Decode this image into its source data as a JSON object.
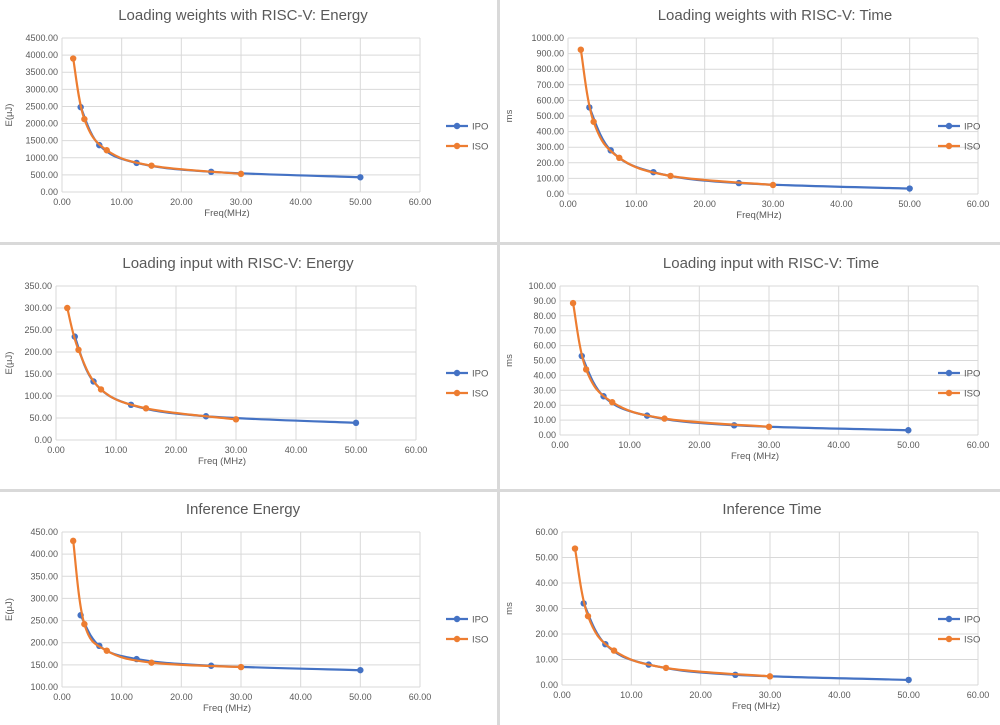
{
  "colors": {
    "IPO": "#4472C4",
    "ISO": "#ED7D31",
    "grid": "#d9d9d9"
  },
  "chart_data": [
    {
      "type": "line",
      "title": "Loading weights with RISC-V: Energy",
      "xlabel": "Freq(MHz)",
      "ylabel": "E(μJ)",
      "xlim": [
        0,
        60
      ],
      "ylim": [
        0,
        4500
      ],
      "xstep": 10,
      "ystep": 500,
      "x_ticks": [
        "0.00",
        "10.00",
        "20.00",
        "30.00",
        "40.00",
        "50.00",
        "60.00"
      ],
      "y_ticks": [
        "0.00",
        "500.00",
        "1000.00",
        "1500.00",
        "2000.00",
        "2500.00",
        "3000.00",
        "3500.00",
        "4000.00",
        "4500.00"
      ],
      "legend": [
        "IPO",
        "ISO"
      ],
      "series": [
        {
          "name": "IPO",
          "x": [
            3.125,
            6.25,
            12.5,
            25,
            50
          ],
          "y": [
            2480,
            1370,
            850,
            590,
            430
          ]
        },
        {
          "name": "ISO",
          "x": [
            1.875,
            3.75,
            7.5,
            15,
            30
          ],
          "y": [
            3900,
            2130,
            1220,
            770,
            530
          ]
        }
      ]
    },
    {
      "type": "line",
      "title": "Loading weights with RISC-V: Time",
      "xlabel": "Freq(MHz)",
      "ylabel": "ms",
      "xlim": [
        0,
        60
      ],
      "ylim": [
        0,
        1000
      ],
      "xstep": 10,
      "ystep": 100,
      "x_ticks": [
        "0.00",
        "10.00",
        "20.00",
        "30.00",
        "40.00",
        "50.00",
        "60.00"
      ],
      "y_ticks": [
        "0.00",
        "100.00",
        "200.00",
        "300.00",
        "400.00",
        "500.00",
        "600.00",
        "700.00",
        "800.00",
        "900.00",
        "1000.00"
      ],
      "legend": [
        "IPO",
        "ISO"
      ],
      "series": [
        {
          "name": "IPO",
          "x": [
            3.125,
            6.25,
            12.5,
            25,
            50
          ],
          "y": [
            555,
            280,
            140,
            70,
            35
          ]
        },
        {
          "name": "ISO",
          "x": [
            1.875,
            3.75,
            7.5,
            15,
            30
          ],
          "y": [
            925,
            463,
            232,
            116,
            58
          ]
        }
      ]
    },
    {
      "type": "line",
      "title": "Loading input with RISC-V: Energy",
      "xlabel": "Freq (MHz)",
      "ylabel": "E(μJ)",
      "xlim": [
        0,
        60
      ],
      "ylim": [
        0,
        350
      ],
      "xstep": 10,
      "ystep": 50,
      "x_ticks": [
        "0.00",
        "10.00",
        "20.00",
        "30.00",
        "40.00",
        "50.00",
        "60.00"
      ],
      "y_ticks": [
        "0.00",
        "50.00",
        "100.00",
        "150.00",
        "200.00",
        "250.00",
        "300.00",
        "350.00"
      ],
      "legend": [
        "IPO",
        "ISO"
      ],
      "series": [
        {
          "name": "IPO",
          "x": [
            3.125,
            6.25,
            12.5,
            25,
            50
          ],
          "y": [
            235,
            133,
            80,
            54,
            39
          ]
        },
        {
          "name": "ISO",
          "x": [
            1.875,
            3.75,
            7.5,
            15,
            30
          ],
          "y": [
            300,
            205,
            115,
            72,
            47
          ]
        }
      ]
    },
    {
      "type": "line",
      "title": "Loading input with RISC-V: Time",
      "xlabel": "Freq (MHz)",
      "ylabel": "ms",
      "xlim": [
        0,
        60
      ],
      "ylim": [
        0,
        100
      ],
      "xstep": 10,
      "ystep": 10,
      "x_ticks": [
        "0.00",
        "10.00",
        "20.00",
        "30.00",
        "40.00",
        "50.00",
        "60.00"
      ],
      "y_ticks": [
        "0.00",
        "10.00",
        "20.00",
        "30.00",
        "40.00",
        "50.00",
        "60.00",
        "70.00",
        "80.00",
        "90.00",
        "100.00"
      ],
      "legend": [
        "IPO",
        "ISO"
      ],
      "series": [
        {
          "name": "IPO",
          "x": [
            3.125,
            6.25,
            12.5,
            25,
            50
          ],
          "y": [
            53,
            26,
            13,
            6.5,
            3.2
          ]
        },
        {
          "name": "ISO",
          "x": [
            1.875,
            3.75,
            7.5,
            15,
            30
          ],
          "y": [
            88.5,
            44,
            22,
            11,
            5.5
          ]
        }
      ]
    },
    {
      "type": "line",
      "title": "Inference Energy",
      "xlabel": "Freq (MHz)",
      "ylabel": "E(μJ)",
      "xlim": [
        0,
        60
      ],
      "ylim": [
        100,
        450
      ],
      "xstep": 10,
      "ystep": 50,
      "x_ticks": [
        "0.00",
        "10.00",
        "20.00",
        "30.00",
        "40.00",
        "50.00",
        "60.00"
      ],
      "y_ticks": [
        "100.00",
        "150.00",
        "200.00",
        "250.00",
        "300.00",
        "350.00",
        "400.00",
        "450.00"
      ],
      "legend": [
        "IPO",
        "ISO"
      ],
      "series": [
        {
          "name": "IPO",
          "x": [
            3.125,
            6.25,
            12.5,
            25,
            50
          ],
          "y": [
            262,
            193,
            163,
            148,
            138
          ]
        },
        {
          "name": "ISO",
          "x": [
            1.875,
            3.75,
            7.5,
            15,
            30
          ],
          "y": [
            430,
            242,
            182,
            155,
            145
          ]
        }
      ]
    },
    {
      "type": "line",
      "title": "Inference Time",
      "xlabel": "Freq (MHz)",
      "ylabel": "ms",
      "xlim": [
        0,
        60
      ],
      "ylim": [
        0,
        60
      ],
      "xstep": 10,
      "ystep": 10,
      "x_ticks": [
        "0.00",
        "10.00",
        "20.00",
        "30.00",
        "40.00",
        "50.00",
        "60.00"
      ],
      "y_ticks": [
        "0.00",
        "10.00",
        "20.00",
        "30.00",
        "40.00",
        "50.00",
        "60.00"
      ],
      "legend": [
        "IPO",
        "ISO"
      ],
      "series": [
        {
          "name": "IPO",
          "x": [
            3.125,
            6.25,
            12.5,
            25,
            50
          ],
          "y": [
            32,
            16,
            8,
            4,
            2
          ]
        },
        {
          "name": "ISO",
          "x": [
            1.875,
            3.75,
            7.5,
            15,
            30
          ],
          "y": [
            53.5,
            27,
            13.5,
            6.7,
            3.4
          ]
        }
      ]
    }
  ]
}
